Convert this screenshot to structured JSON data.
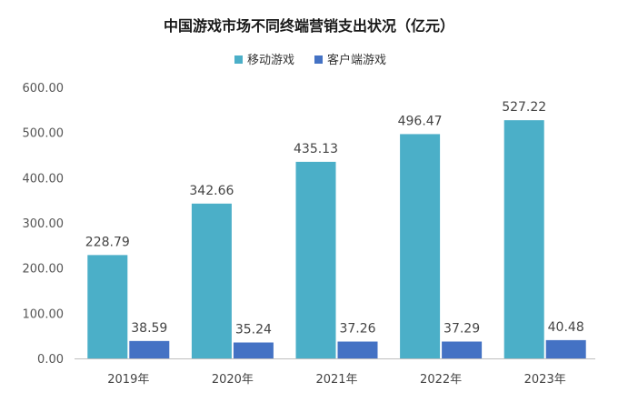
{
  "chart_data": {
    "type": "bar",
    "title": "中国游戏市场不同终端营销支出状况（亿元）",
    "categories": [
      "2019年",
      "2020年",
      "2021年",
      "2022年",
      "2023年"
    ],
    "series": [
      {
        "name": "移动游戏",
        "color": "#4BAFC8",
        "values": [
          228.79,
          342.66,
          435.13,
          496.47,
          527.22
        ],
        "labels": [
          "228.79",
          "342.66",
          "435.13",
          "496.47",
          "527.22"
        ]
      },
      {
        "name": "客户端游戏",
        "color": "#4472C4",
        "values": [
          38.59,
          35.24,
          37.26,
          37.29,
          40.48
        ],
        "labels": [
          "38.59",
          "35.24",
          "37.26",
          "37.29",
          "40.48"
        ]
      }
    ],
    "ylim": [
      0,
      600
    ],
    "yticks": [
      "0.00",
      "100.00",
      "200.00",
      "300.00",
      "400.00",
      "500.00",
      "600.00"
    ],
    "ytick_values": [
      0,
      100,
      200,
      300,
      400,
      500,
      600
    ],
    "grid": false,
    "legend_position": "top-center"
  }
}
